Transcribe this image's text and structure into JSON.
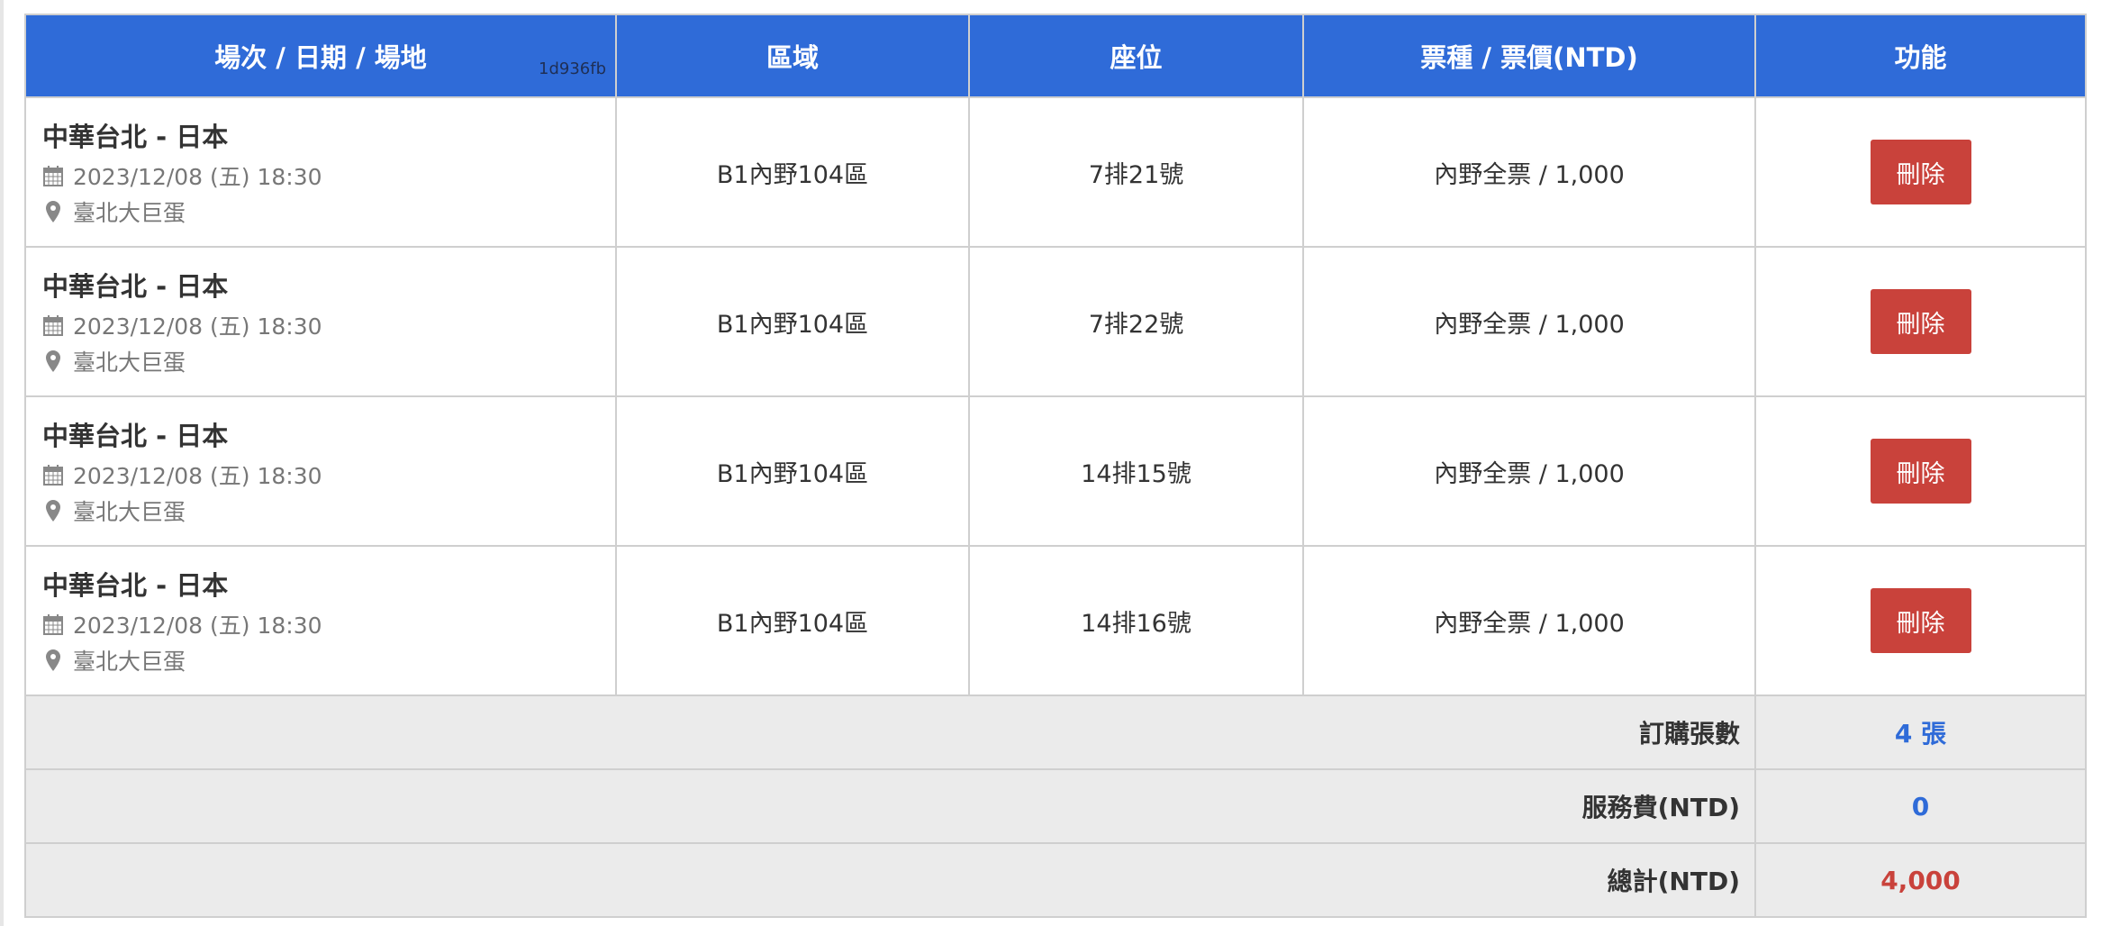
{
  "header": {
    "col_event": "場次 / 日期 / 場地",
    "hash": "1d936fb",
    "col_area": "區域",
    "col_seat": "座位",
    "col_ticket": "票種 / 票價(NTD)",
    "col_action": "功能"
  },
  "rows": [
    {
      "match": "中華台北 - 日本",
      "date": "2023/12/08 (五) 18:30",
      "venue": "臺北大巨蛋",
      "area": "B1內野104區",
      "seat": "7排21號",
      "ticket": "內野全票 / 1,000",
      "delete": "刪除"
    },
    {
      "match": "中華台北 - 日本",
      "date": "2023/12/08 (五) 18:30",
      "venue": "臺北大巨蛋",
      "area": "B1內野104區",
      "seat": "7排22號",
      "ticket": "內野全票 / 1,000",
      "delete": "刪除"
    },
    {
      "match": "中華台北 - 日本",
      "date": "2023/12/08 (五) 18:30",
      "venue": "臺北大巨蛋",
      "area": "B1內野104區",
      "seat": "14排15號",
      "ticket": "內野全票 / 1,000",
      "delete": "刪除"
    },
    {
      "match": "中華台北 - 日本",
      "date": "2023/12/08 (五) 18:30",
      "venue": "臺北大巨蛋",
      "area": "B1內野104區",
      "seat": "14排16號",
      "ticket": "內野全票 / 1,000",
      "delete": "刪除"
    }
  ],
  "summary": {
    "count_label": "訂購張數",
    "count_value": "4 張",
    "fee_label": "服務費(NTD)",
    "fee_value": "0",
    "total_label": "總計(NTD)",
    "total_value": "4,000"
  },
  "colors": {
    "header": "#2f6bd8",
    "delete": "#c9423b",
    "total": "#c9423b",
    "count": "#2f6bd8"
  }
}
